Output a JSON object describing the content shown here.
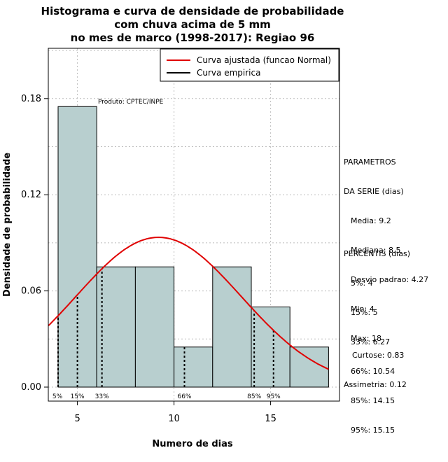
{
  "chart_data": {
    "type": "histogram",
    "title": [
      "Histograma e curva de densidade de probabilidade",
      "com chuva acima de 5 mm",
      "no mes de marco (1998-2017): Regiao 96"
    ],
    "xlabel": "Numero de dias",
    "ylabel": "Densidade de probabilidade",
    "xlim": [
      3.5,
      18.5
    ],
    "ylim": [
      0,
      0.21
    ],
    "x_ticks": [
      5,
      10,
      15
    ],
    "y_ticks": [
      0.0,
      0.06,
      0.12,
      0.18
    ],
    "y_tick_labels": [
      "0.00",
      "0.06",
      "0.12",
      "0.18"
    ],
    "bars": [
      {
        "x0": 4,
        "x1": 6,
        "density": 0.175
      },
      {
        "x0": 6,
        "x1": 8,
        "density": 0.075
      },
      {
        "x0": 8,
        "x1": 10,
        "density": 0.075
      },
      {
        "x0": 10,
        "x1": 12,
        "density": 0.025
      },
      {
        "x0": 12,
        "x1": 14,
        "density": 0.075
      },
      {
        "x0": 14,
        "x1": 16,
        "density": 0.05
      },
      {
        "x0": 16,
        "x1": 18,
        "density": 0.025
      }
    ],
    "bar_color": "#b8cfcf",
    "curve": {
      "name": "Curva ajustada (funcao Normal)",
      "mean": 9.2,
      "sd": 4.27,
      "color": "#e00000",
      "x_range": [
        3.5,
        18.5
      ]
    },
    "legend": [
      {
        "label": "Curva ajustada (funcao Normal)",
        "color": "#e00000"
      },
      {
        "label": "Curva empirica",
        "color": "#000000"
      }
    ],
    "legend_position": "top-right",
    "annotation": "Produto: CPTEC/INPE",
    "percentile_lines": [
      {
        "label": "5%",
        "x": 4
      },
      {
        "label": "15%",
        "x": 5
      },
      {
        "label": "33%",
        "x": 6.27
      },
      {
        "label": "66%",
        "x": 10.54
      },
      {
        "label": "85%",
        "x": 14.15
      },
      {
        "label": "95%",
        "x": 15.15
      }
    ],
    "grid": true
  },
  "parametros": {
    "header": [
      "PARAMETROS",
      "DA SERIE (dias)"
    ],
    "items": [
      "Media: 9.2",
      "Mediana: 8.5",
      "Desvio padrao: 4.27",
      "Min: 4",
      "Max: 18"
    ]
  },
  "percentis": {
    "header": "PERCENTIS (dias)",
    "items": [
      "5%: 4",
      "15%: 5",
      "33%: 6.27",
      "66%: 10.54",
      "85%: 14.15",
      "95%: 15.15"
    ]
  },
  "shape": {
    "items": [
      "Curtose: 0.83",
      "Assimetria: 0.12"
    ]
  }
}
